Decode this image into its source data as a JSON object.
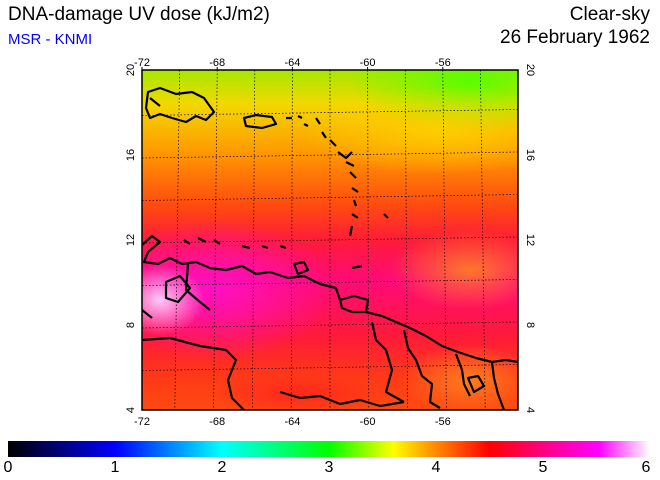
{
  "header": {
    "title": "DNA-damage UV dose (kJ/m2)",
    "credit": "MSR - KNMI",
    "condition": "Clear-sky",
    "date": "26 February 1962"
  },
  "map": {
    "lon_ticks": [
      "-72",
      "-68",
      "-64",
      "-60",
      "-56"
    ],
    "lat_ticks": [
      "20",
      "16",
      "12",
      "8",
      "4"
    ],
    "lon_range": [
      -72,
      -52
    ],
    "lat_range": [
      4,
      20
    ],
    "grid": true,
    "region": "Caribbean Sea and northern South America"
  },
  "colorbar": {
    "labels": [
      "0",
      "1",
      "2",
      "3",
      "4",
      "5",
      "6"
    ],
    "range": [
      0,
      6
    ],
    "colors": [
      "#000000",
      "#0000ff",
      "#00ffff",
      "#00ff00",
      "#ffff00",
      "#ff0000",
      "#ff00aa",
      "#ffffff"
    ]
  },
  "chart_data": {
    "type": "heatmap",
    "title": "DNA-damage UV dose (kJ/m2)",
    "x_ticks": [
      -72,
      -68,
      -64,
      -60,
      -56
    ],
    "y_ticks": [
      4,
      8,
      12,
      16,
      20
    ],
    "value_range": [
      0,
      6
    ],
    "approx_values_by_latitude": [
      {
        "lat": 20,
        "value": 3.3
      },
      {
        "lat": 18,
        "value": 3.7
      },
      {
        "lat": 16,
        "value": 4.0
      },
      {
        "lat": 14,
        "value": 4.3
      },
      {
        "lat": 12,
        "value": 4.6
      },
      {
        "lat": 10,
        "value": 4.8
      },
      {
        "lat": 8,
        "value": 4.8
      },
      {
        "lat": 6,
        "value": 4.4
      },
      {
        "lat": 4,
        "value": 4.2
      }
    ]
  }
}
